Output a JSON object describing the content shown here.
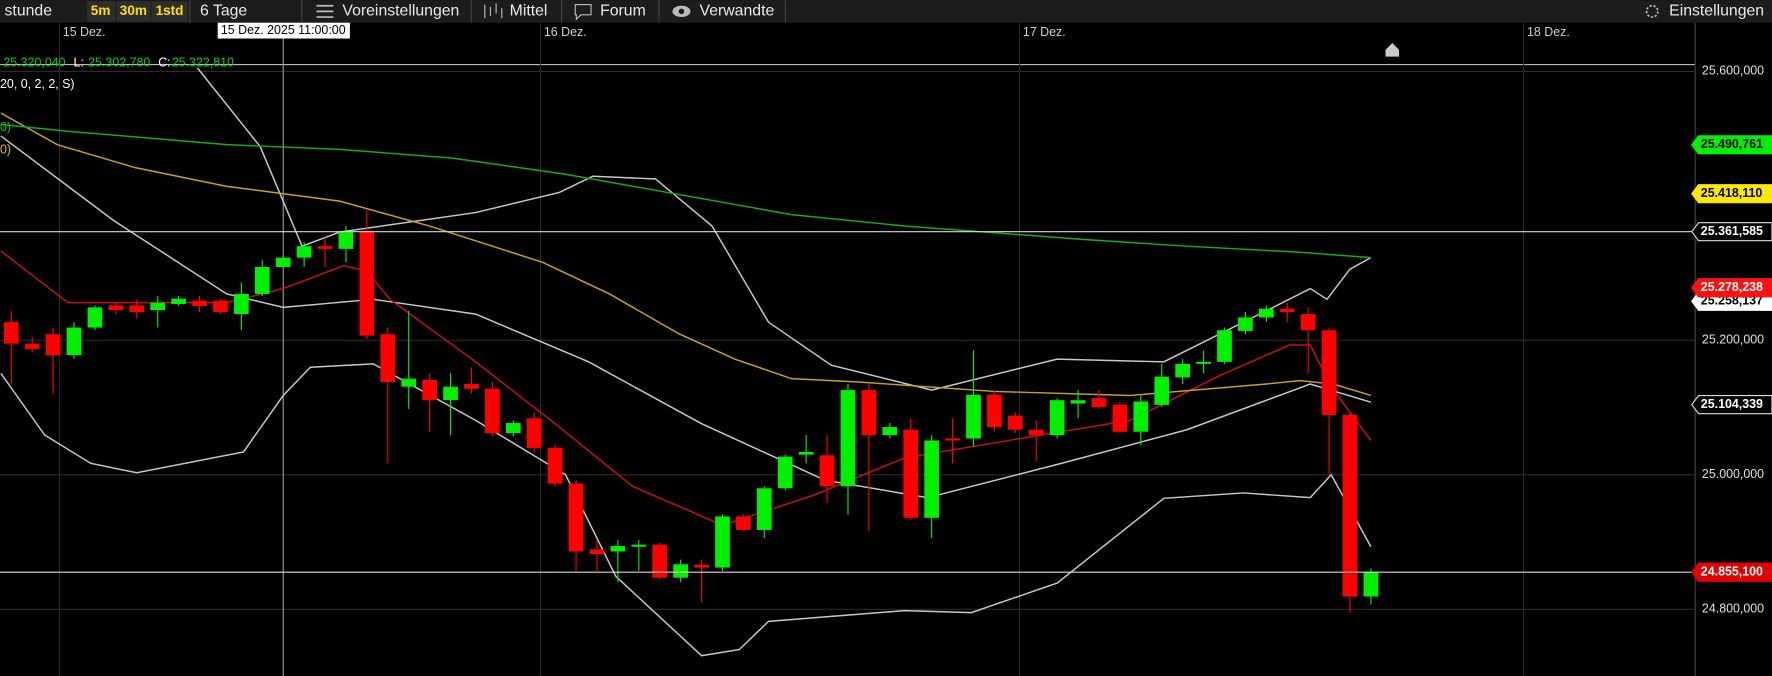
{
  "toolbar": {
    "left_label": "stunde",
    "intervals": [
      "5m",
      "30m",
      "1std"
    ],
    "range": "6 Tage",
    "buttons": [
      "Voreinstellungen",
      "Mittel",
      "Forum",
      "Verwandte"
    ],
    "settings": "Einstellungen"
  },
  "chart_data": {
    "type": "candlestick",
    "ohlc_header": {
      "o": "25.320,040",
      "l_label": "L:",
      "l": "25.302,780",
      "c_label": "C:",
      "c": "25.322,810"
    },
    "indicator_legend": [
      "20, 0, 2, 2, S)",
      "0)",
      "0)"
    ],
    "open": [
      25227,
      25195,
      25209,
      25178,
      25219,
      25252,
      25252,
      25245,
      25254,
      25259,
      25259,
      25239,
      25269,
      25309,
      25323,
      25340,
      25336,
      25361,
      25209,
      25131,
      25141,
      25111,
      25135,
      25128,
      25062,
      25084,
      25040,
      24987,
      24889,
      24886,
      24893,
      24896,
      24847,
      24866,
      24862,
      24938,
      24918,
      24980,
      25030,
      25029,
      24983,
      25126,
      25059,
      25067,
      24936,
      25054,
      25054,
      25119,
      25088,
      25067,
      25059,
      25106,
      25114,
      25104,
      25064,
      25104,
      25145,
      25165,
      25168,
      25214,
      25234,
      25247,
      25239,
      25215,
      25089,
      24819
    ],
    "high": [
      25244,
      25205,
      25219,
      25227,
      25252,
      25256,
      25261,
      25266,
      25266,
      25266,
      25262,
      25286,
      25319,
      25326,
      25346,
      25353,
      25370,
      25393,
      25219,
      25244,
      25151,
      25151,
      25160,
      25138,
      25081,
      25093,
      25044,
      24992,
      24903,
      24903,
      24903,
      24899,
      24874,
      24874,
      24941,
      24941,
      24983,
      25030,
      25059,
      25059,
      25135,
      25135,
      25077,
      25084,
      25059,
      25084,
      25185,
      25126,
      25093,
      25081,
      25114,
      25126,
      25126,
      25109,
      25118,
      25165,
      25172,
      25185,
      25219,
      25242,
      25252,
      25256,
      25249,
      25219,
      25093,
      24861
    ],
    "low": [
      25135,
      25182,
      25121,
      25172,
      25215,
      25239,
      25232,
      25219,
      25251,
      25242,
      25239,
      25215,
      25266,
      25308,
      25309,
      25309,
      25316,
      25202,
      25017,
      25098,
      25064,
      25059,
      25121,
      25057,
      25057,
      25034,
      24983,
      24857,
      24857,
      24840,
      24857,
      24844,
      24840,
      24810,
      24857,
      24916,
      24906,
      24977,
      25017,
      24958,
      24941,
      24916,
      25054,
      24933,
      24906,
      25017,
      25042,
      25064,
      25062,
      25020,
      25054,
      25084,
      25098,
      25062,
      25044,
      25101,
      25135,
      25151,
      25165,
      25209,
      25227,
      25227,
      25151,
      25000,
      24795,
      24807
    ],
    "close": [
      25195,
      25187,
      25178,
      25219,
      25249,
      25245,
      25242,
      25256,
      25262,
      25251,
      25242,
      25269,
      25309,
      25323,
      25340,
      25336,
      25361,
      25207,
      25138,
      25143,
      25111,
      25131,
      25128,
      25062,
      25077,
      25040,
      24987,
      24886,
      24882,
      24894,
      24896,
      24847,
      24867,
      24862,
      24938,
      24918,
      24980,
      25027,
      25034,
      24983,
      25126,
      25059,
      25071,
      24936,
      25051,
      25051,
      25119,
      25071,
      25067,
      25059,
      25111,
      25111,
      25101,
      25064,
      25109,
      25146,
      25165,
      25168,
      25215,
      25234,
      25247,
      25242,
      25215,
      25089,
      24819,
      24855.1
    ],
    "up_color": "#00f000",
    "down_color": "#ff0000",
    "overlays": [
      {
        "type": "line",
        "color": "#c8c8c8",
        "x": [
          8.9,
          11.9,
          13.9,
          15.7,
          22.2,
          26.2,
          27.8,
          30.8,
          33.5,
          36.2,
          39.2,
          44.0,
          50.0,
          55.1,
          60.0,
          62.1,
          62.9,
          64.0,
          65.0
        ],
        "values": [
          25605,
          25488,
          25340,
          25361,
          25390,
          25420,
          25444,
          25440,
          25370,
          25227,
          25163,
          25126,
          25172,
          25168,
          25244,
          25277,
          25261,
          25306,
          25323
        ]
      },
      {
        "type": "line",
        "color": "#c8c8c8",
        "x": [
          -0.5,
          4.9,
          10.3,
          13.0,
          17.3,
          22.2,
          27.6,
          33.0,
          38.9,
          43.8,
          50.2,
          56.2,
          62.1,
          65.0
        ],
        "values": [
          25504,
          25378,
          25269,
          25249,
          25261,
          25239,
          25168,
          25076,
          24992,
          24966,
          25017,
          25067,
          25135,
          25108
        ]
      },
      {
        "type": "line",
        "color": "#c8c8c8",
        "x": [
          -0.5,
          1.6,
          3.8,
          6.0,
          11.1,
          13.0,
          14.3,
          17.3,
          22.2,
          26.5,
          28.9,
          33.0,
          34.8,
          36.2,
          42.7,
          45.9,
          50.0,
          55.1,
          58.9,
          62.1,
          63.1,
          65.0
        ],
        "values": [
          25151,
          25059,
          25017,
          25003,
          25034,
          25118,
          25160,
          25165,
          25081,
          25000,
          24849,
          24731,
          24740,
          24782,
          24798,
          24795,
          24839,
          24965,
          24973,
          24966,
          25000,
          24893
        ]
      },
      {
        "type": "line",
        "color": "#c81010",
        "x": [
          -0.5,
          2.7,
          10.3,
          13.0,
          15.9,
          17.0,
          18.1,
          22.2,
          26.0,
          29.7,
          34.0,
          38.4,
          42.7,
          49.2,
          53.5,
          57.8,
          61.1,
          62.1,
          63.1,
          65.0
        ],
        "values": [
          25333,
          25256,
          25256,
          25277,
          25311,
          25303,
          25261,
          25168,
          25076,
          24983,
          24925,
          24970,
          25025,
          25059,
          25081,
          25148,
          25193,
          25193,
          25131,
          25051
        ]
      },
      {
        "type": "line",
        "color": "#c8a020",
        "x": [
          -0.5,
          2.2,
          5.9,
          10.3,
          15.7,
          20.0,
          25.4,
          28.6,
          31.9,
          34.6,
          37.3,
          40.5,
          47.0,
          53.5,
          60.0,
          61.6,
          63.2,
          65.0
        ],
        "values": [
          25538,
          25491,
          25457,
          25429,
          25407,
          25370,
          25316,
          25269,
          25210,
          25172,
          25143,
          25138,
          25124,
          25118,
          25135,
          25140,
          25135,
          25118
        ]
      },
      {
        "type": "line",
        "color": "#10b010",
        "x": [
          -0.5,
          2.7,
          10.3,
          15.7,
          21.1,
          26.5,
          31.9,
          37.3,
          42.7,
          47.0,
          51.3,
          56.2,
          61.6,
          65.0
        ],
        "values": [
          25521,
          25511,
          25491,
          25484,
          25471,
          25447,
          25417,
          25387,
          25370,
          25360,
          25350,
          25340,
          25331,
          25323
        ]
      }
    ],
    "xlim": [
      -0.54,
      80.5
    ],
    "xticks": [
      {
        "value": 2.3,
        "label": "15 Dez."
      },
      {
        "value": 25.3,
        "label": "16 Dez."
      },
      {
        "value": 48.2,
        "label": "17 Dez."
      },
      {
        "value": 72.3,
        "label": "18 Dez."
      }
    ],
    "ylim": [
      24700.9,
      25645.5
    ],
    "yticks": [
      {
        "value": 25600,
        "label": "25.600,000"
      },
      {
        "value": 25200,
        "label": "25.200,000"
      },
      {
        "value": 25000,
        "label": "25.000,000"
      },
      {
        "value": 24800,
        "label": "24.800,000"
      }
    ],
    "grid": true,
    "crosshair": {
      "x": 13,
      "label": "15 Dez. 2025 11:00:00"
    },
    "price_markers": [
      {
        "value": 25490.761,
        "label": "25.490,761",
        "color": "#00f000",
        "text_color": "#000000",
        "line": false
      },
      {
        "value": 25418.11,
        "label": "25.418,110",
        "color": "#ffe800",
        "text_color": "#000000",
        "line": false
      },
      {
        "value": 25361.585,
        "label": "25.361,585",
        "color": "#000000",
        "text_color": "#ffffff",
        "line": true
      },
      {
        "value": 25258.137,
        "label": "25.258,137",
        "color": "#ffffff",
        "text_color": "#000000",
        "line": false
      },
      {
        "value": 25278.238,
        "label": "25.278,238",
        "color": "#ff1010",
        "text_color": "#ffffff",
        "line": false
      },
      {
        "value": 25104.339,
        "label": "25.104,339",
        "color": "#000000",
        "text_color": "#ffffff",
        "line": false
      },
      {
        "value": 24855.1,
        "label": "24.855,100",
        "color": "#e00000",
        "text_color": "#ffffff",
        "line": true
      }
    ]
  }
}
